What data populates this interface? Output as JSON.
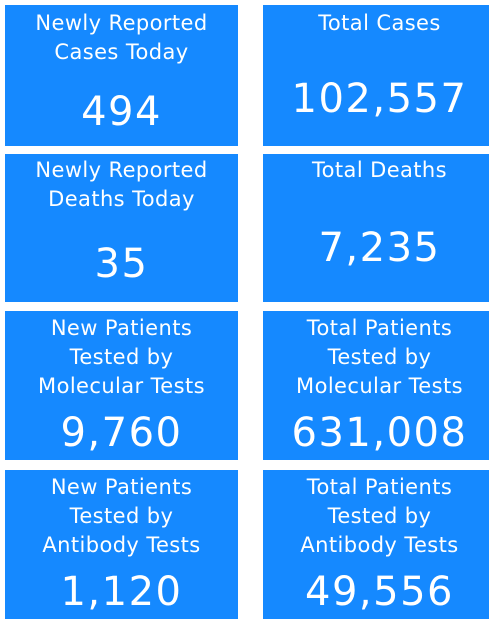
{
  "tiles": [
    {
      "label": "Newly Reported\nCases Today",
      "value": "494"
    },
    {
      "label": "Total Cases",
      "value": "102,557"
    },
    {
      "label": "Newly Reported\nDeaths Today",
      "value": "35"
    },
    {
      "label": "Total Deaths",
      "value": "7,235"
    },
    {
      "label": "New Patients\nTested by\nMolecular Tests",
      "value": "9,760"
    },
    {
      "label": "Total Patients\nTested by\nMolecular Tests",
      "value": "631,008"
    },
    {
      "label": "New Patients\nTested by\nAntibody Tests",
      "value": "1,120"
    },
    {
      "label": "Total Patients\nTested by\nAntibody Tests",
      "value": "49,556"
    }
  ],
  "colors": {
    "tile_background": "#1589ff",
    "text": "#ffffff",
    "page_background": "#ffffff"
  }
}
